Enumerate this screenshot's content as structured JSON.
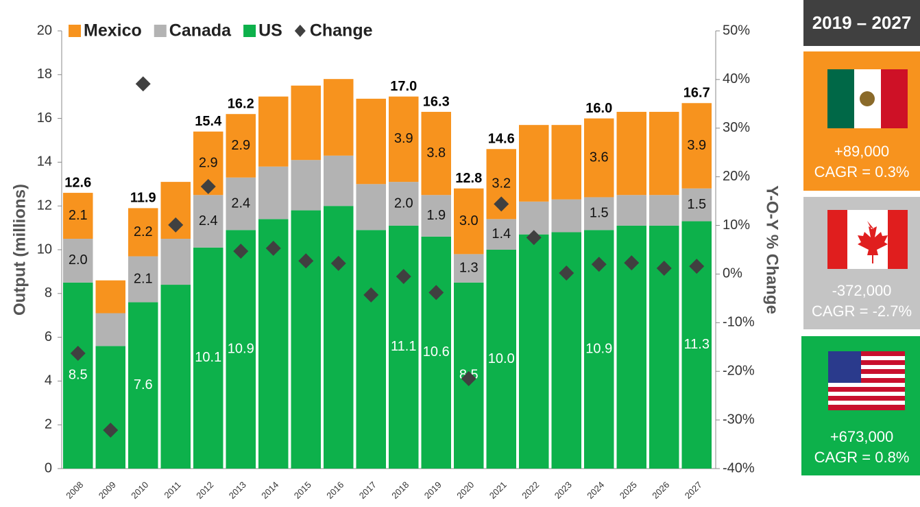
{
  "chart_data": {
    "type": "bar",
    "categories": [
      "2008",
      "2009",
      "2010",
      "2011",
      "2012",
      "2013",
      "2014",
      "2015",
      "2016",
      "2017",
      "2018",
      "2019",
      "2020",
      "2021",
      "2022",
      "2023",
      "2024",
      "2025",
      "2026",
      "2027"
    ],
    "series": [
      {
        "name": "Mexico",
        "color": "#f7931e",
        "values": [
          2.1,
          1.5,
          2.2,
          2.6,
          2.9,
          2.9,
          3.2,
          3.4,
          3.5,
          3.9,
          3.9,
          3.8,
          3.0,
          3.2,
          3.5,
          3.4,
          3.6,
          3.8,
          3.8,
          3.9
        ],
        "value_labels": [
          "2.1",
          null,
          "2.2",
          null,
          "2.9",
          "2.9",
          null,
          null,
          null,
          null,
          "3.9",
          "3.8",
          "3.0",
          "3.2",
          null,
          null,
          "3.6",
          null,
          null,
          "3.9"
        ]
      },
      {
        "name": "Canada",
        "color": "#b3b3b3",
        "values": [
          2.0,
          1.5,
          2.1,
          2.1,
          2.4,
          2.4,
          2.4,
          2.3,
          2.3,
          2.1,
          2.0,
          1.9,
          1.3,
          1.4,
          1.5,
          1.5,
          1.5,
          1.4,
          1.4,
          1.5
        ],
        "value_labels": [
          "2.0",
          null,
          "2.1",
          null,
          "2.4",
          "2.4",
          null,
          null,
          null,
          null,
          "2.0",
          "1.9",
          "1.3",
          "1.4",
          null,
          null,
          "1.5",
          null,
          null,
          "1.5"
        ]
      },
      {
        "name": "US",
        "color": "#0db14b",
        "values": [
          8.5,
          5.6,
          7.6,
          8.4,
          10.1,
          10.9,
          11.4,
          11.8,
          12.0,
          10.9,
          11.1,
          10.6,
          8.5,
          10.0,
          10.7,
          10.8,
          10.9,
          11.1,
          11.1,
          11.3
        ],
        "value_labels": [
          "8.5",
          null,
          "7.6",
          null,
          "10.1",
          "10.9",
          null,
          null,
          null,
          null,
          "11.1",
          "10.6",
          "8.5",
          "10.0",
          null,
          null,
          "10.9",
          null,
          null,
          "11.3"
        ]
      },
      {
        "name": "Change",
        "color": "#404040",
        "axis": "y2",
        "values": [
          -16.3,
          -32.1,
          39.1,
          10.1,
          18.0,
          4.7,
          5.3,
          2.7,
          2.2,
          -4.3,
          -0.5,
          -3.8,
          -21.5,
          14.4,
          7.5,
          0.2,
          2.0,
          2.3,
          1.2,
          1.6
        ]
      }
    ],
    "total_labels": [
      "12.6",
      null,
      "11.9",
      null,
      "15.4",
      "16.2",
      null,
      null,
      null,
      null,
      "17.0",
      "16.3",
      "12.8",
      "14.6",
      null,
      null,
      "16.0",
      null,
      null,
      "16.7"
    ],
    "ylabel": "Output (millions)",
    "y2label": "Y-O-Y % Change",
    "ylim": [
      0,
      20
    ],
    "yticks": [
      0,
      2,
      4,
      6,
      8,
      10,
      12,
      14,
      16,
      18,
      20
    ],
    "y2lim": [
      -40,
      50
    ],
    "y2ticks": [
      {
        "value": -40,
        "label": "-40%"
      },
      {
        "value": -30,
        "label": "-30%"
      },
      {
        "value": -20,
        "label": "-20%"
      },
      {
        "value": -10,
        "label": "-10%"
      },
      {
        "value": 0,
        "label": "0%"
      },
      {
        "value": 10,
        "label": "10%"
      },
      {
        "value": 20,
        "label": "20%"
      },
      {
        "value": 30,
        "label": "30%"
      },
      {
        "value": 40,
        "label": "40%"
      },
      {
        "value": 50,
        "label": "50%"
      }
    ],
    "legend": "top-left"
  },
  "panel": {
    "title": "2019 – 2027",
    "items": [
      {
        "change": "+89,000",
        "cagr": "CAGR = 0.3%"
      },
      {
        "change": "-372,000",
        "cagr": "CAGR = -2.7%"
      },
      {
        "change": "+673,000",
        "cagr": "CAGR = 0.8%"
      }
    ]
  }
}
